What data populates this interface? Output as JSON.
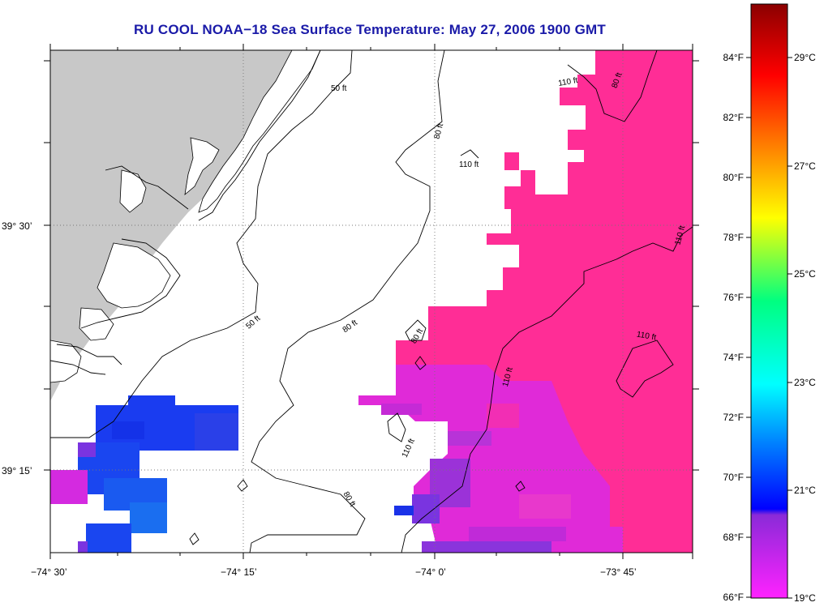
{
  "title": "RU COOL  NOAA−18  Sea Surface Temperature:  May 27, 2006 1900 GMT",
  "map": {
    "x_ticks": [
      "−74° 30’",
      "−74° 15’",
      "−74° 0’",
      "−73° 45’"
    ],
    "y_ticks": [
      "39° 30’",
      "39° 15’"
    ],
    "contour_labels": [
      "50 ft",
      "50 ft",
      "80 ft",
      "80 ft",
      "80 ft",
      "80 ft",
      "80 ft",
      "110 ft",
      "110 ft",
      "110 ft",
      "110 ft",
      "110 ft",
      "110 ft"
    ],
    "colors": {
      "land": "#c8c8c8",
      "ocean_cold": "#1a3cf0",
      "ocean_mid": "#d42ae0",
      "ocean_warm": "#ff2d96",
      "grid": "#777777"
    }
  },
  "colorbar": {
    "f_labels": [
      "84°F",
      "82°F",
      "80°F",
      "78°F",
      "76°F",
      "74°F",
      "72°F",
      "70°F",
      "68°F",
      "66°F"
    ],
    "c_labels": [
      "29°C",
      "27°C",
      "25°C",
      "23°C",
      "21°C",
      "19°C"
    ]
  }
}
